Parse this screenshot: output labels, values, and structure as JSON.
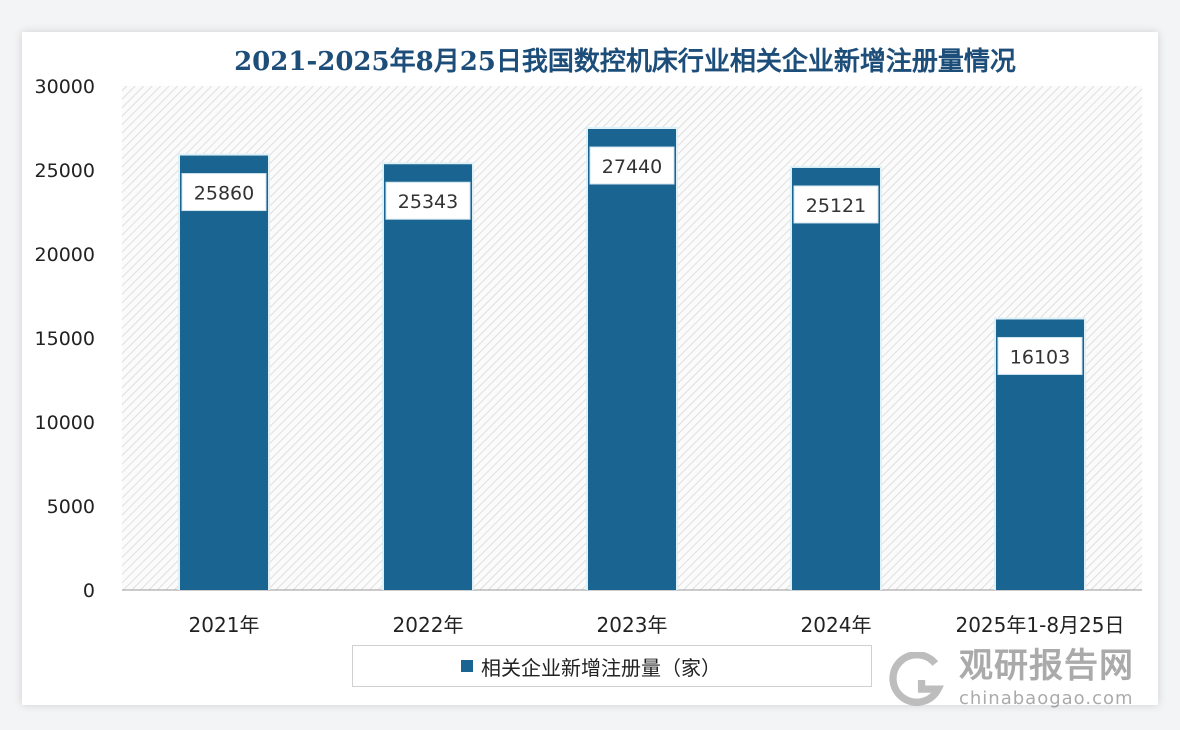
{
  "chart_data": {
    "type": "bar",
    "title": "2021-2025年8月25日我国数控机床行业相关企业新增注册量情况",
    "categories": [
      "2021年",
      "2022年",
      "2023年",
      "2024年",
      "2025年1-8月25日"
    ],
    "series": [
      {
        "name": "相关企业新增注册量（家）",
        "values": [
          25860,
          25343,
          27440,
          25121,
          16103
        ]
      }
    ],
    "ylim": [
      0,
      30000
    ],
    "yticks": [
      0,
      5000,
      10000,
      15000,
      20000,
      25000,
      30000
    ],
    "xlabel": "",
    "ylabel": "",
    "legend_position": "bottom",
    "bar_color": "#1a6491"
  },
  "watermark": {
    "cn": "观研报告网",
    "en": "chinabaogao.com"
  }
}
